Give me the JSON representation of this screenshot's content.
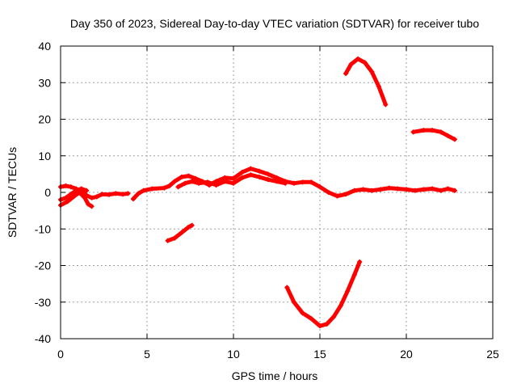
{
  "chart_data": {
    "type": "scatter",
    "title": "Day 350 of 2023, Sidereal Day-to-day VTEC variation (SDTVAR) for receiver tubo",
    "xlabel": "GPS time / hours",
    "ylabel": "SDTVAR / TECUs",
    "xlim": [
      0,
      25
    ],
    "ylim": [
      -40,
      40
    ],
    "xticks": [
      "0",
      "5",
      "10",
      "15",
      "20",
      "25"
    ],
    "yticks": [
      "40",
      "30",
      "20",
      "10",
      "0",
      "-10",
      "-20",
      "-30",
      "-40"
    ],
    "grid": true,
    "series": [
      {
        "color": "#ff0000",
        "points": [
          [
            0.0,
            1.5
          ],
          [
            0.3,
            1.8
          ],
          [
            0.6,
            1.5
          ],
          [
            0.9,
            1.0
          ],
          [
            1.2,
            0.3
          ],
          [
            1.5,
            -0.8
          ],
          [
            1.8,
            -1.5
          ],
          [
            2.1,
            -1.2
          ],
          [
            2.4,
            -0.5
          ],
          [
            2.8,
            -0.6
          ],
          [
            3.2,
            -0.3
          ],
          [
            3.6,
            -0.5
          ],
          [
            3.9,
            -0.3
          ]
        ]
      },
      {
        "color": "#ff0000",
        "points": [
          [
            0.0,
            -3.5
          ],
          [
            0.4,
            -2.5
          ],
          [
            0.8,
            -1.0
          ],
          [
            1.1,
            0.0
          ],
          [
            1.4,
            -1.5
          ],
          [
            1.6,
            -3.2
          ],
          [
            1.8,
            -3.8
          ]
        ]
      },
      {
        "color": "#ff0000",
        "points": [
          [
            0.0,
            -2.0
          ],
          [
            0.3,
            -1.5
          ],
          [
            0.6,
            -0.5
          ],
          [
            0.9,
            0.5
          ],
          [
            1.2,
            1.0
          ],
          [
            1.5,
            0.5
          ]
        ]
      },
      {
        "color": "#ff0000",
        "points": [
          [
            4.2,
            -1.8
          ],
          [
            4.5,
            -0.3
          ],
          [
            4.8,
            0.5
          ],
          [
            5.3,
            1.0
          ],
          [
            6.0,
            1.2
          ],
          [
            6.3,
            1.8
          ],
          [
            6.6,
            3.0
          ],
          [
            7.0,
            4.2
          ],
          [
            7.4,
            4.5
          ],
          [
            7.8,
            3.8
          ],
          [
            8.2,
            3.0
          ],
          [
            8.6,
            2.0
          ],
          [
            9.0,
            3.0
          ],
          [
            9.5,
            4.0
          ],
          [
            10.0,
            3.8
          ],
          [
            10.5,
            5.5
          ],
          [
            11.0,
            6.5
          ],
          [
            11.5,
            5.8
          ],
          [
            12.0,
            5.0
          ],
          [
            12.5,
            4.0
          ],
          [
            13.0,
            3.0
          ],
          [
            13.5,
            2.5
          ],
          [
            14.0,
            2.8
          ],
          [
            14.5,
            2.8
          ],
          [
            15.0,
            1.5
          ],
          [
            15.5,
            0.0
          ],
          [
            16.0,
            -1.0
          ],
          [
            16.5,
            -0.5
          ],
          [
            17.0,
            0.5
          ],
          [
            17.5,
            0.8
          ],
          [
            18.0,
            0.5
          ],
          [
            18.5,
            0.8
          ],
          [
            19.0,
            1.2
          ],
          [
            19.5,
            1.0
          ],
          [
            20.0,
            0.8
          ],
          [
            20.5,
            0.5
          ],
          [
            21.0,
            0.8
          ],
          [
            21.5,
            1.0
          ],
          [
            22.0,
            0.5
          ],
          [
            22.4,
            1.0
          ],
          [
            22.8,
            0.5
          ]
        ]
      },
      {
        "color": "#ff0000",
        "points": [
          [
            6.8,
            1.5
          ],
          [
            7.2,
            2.5
          ],
          [
            7.6,
            3.0
          ],
          [
            8.0,
            2.5
          ],
          [
            8.5,
            2.8
          ],
          [
            9.0,
            2.0
          ],
          [
            9.5,
            3.0
          ],
          [
            10.0,
            2.5
          ],
          [
            10.5,
            4.0
          ],
          [
            11.0,
            4.8
          ],
          [
            11.5,
            4.2
          ],
          [
            12.0,
            3.5
          ],
          [
            12.5,
            3.0
          ],
          [
            13.0,
            2.5
          ]
        ]
      },
      {
        "color": "#ff0000",
        "points": [
          [
            6.2,
            -13.2
          ],
          [
            6.6,
            -12.5
          ],
          [
            7.0,
            -11.0
          ],
          [
            7.4,
            -9.5
          ],
          [
            7.6,
            -9.0
          ]
        ]
      },
      {
        "color": "#ff0000",
        "points": [
          [
            13.1,
            -26.0
          ],
          [
            13.5,
            -30.0
          ],
          [
            14.0,
            -33.0
          ],
          [
            14.5,
            -34.5
          ],
          [
            15.0,
            -36.5
          ],
          [
            15.4,
            -36.0
          ],
          [
            15.8,
            -34.0
          ],
          [
            16.2,
            -31.0
          ],
          [
            16.6,
            -27.0
          ],
          [
            17.0,
            -22.5
          ],
          [
            17.3,
            -19.0
          ]
        ]
      },
      {
        "color": "#ff0000",
        "points": [
          [
            16.5,
            32.5
          ],
          [
            16.8,
            35.0
          ],
          [
            17.2,
            36.5
          ],
          [
            17.6,
            35.5
          ],
          [
            18.0,
            33.0
          ],
          [
            18.4,
            29.0
          ],
          [
            18.8,
            24.0
          ]
        ]
      },
      {
        "color": "#ff0000",
        "points": [
          [
            20.4,
            16.5
          ],
          [
            21.0,
            17.0
          ],
          [
            21.5,
            17.0
          ],
          [
            22.0,
            16.5
          ],
          [
            22.4,
            15.5
          ],
          [
            22.8,
            14.5
          ]
        ]
      }
    ]
  }
}
